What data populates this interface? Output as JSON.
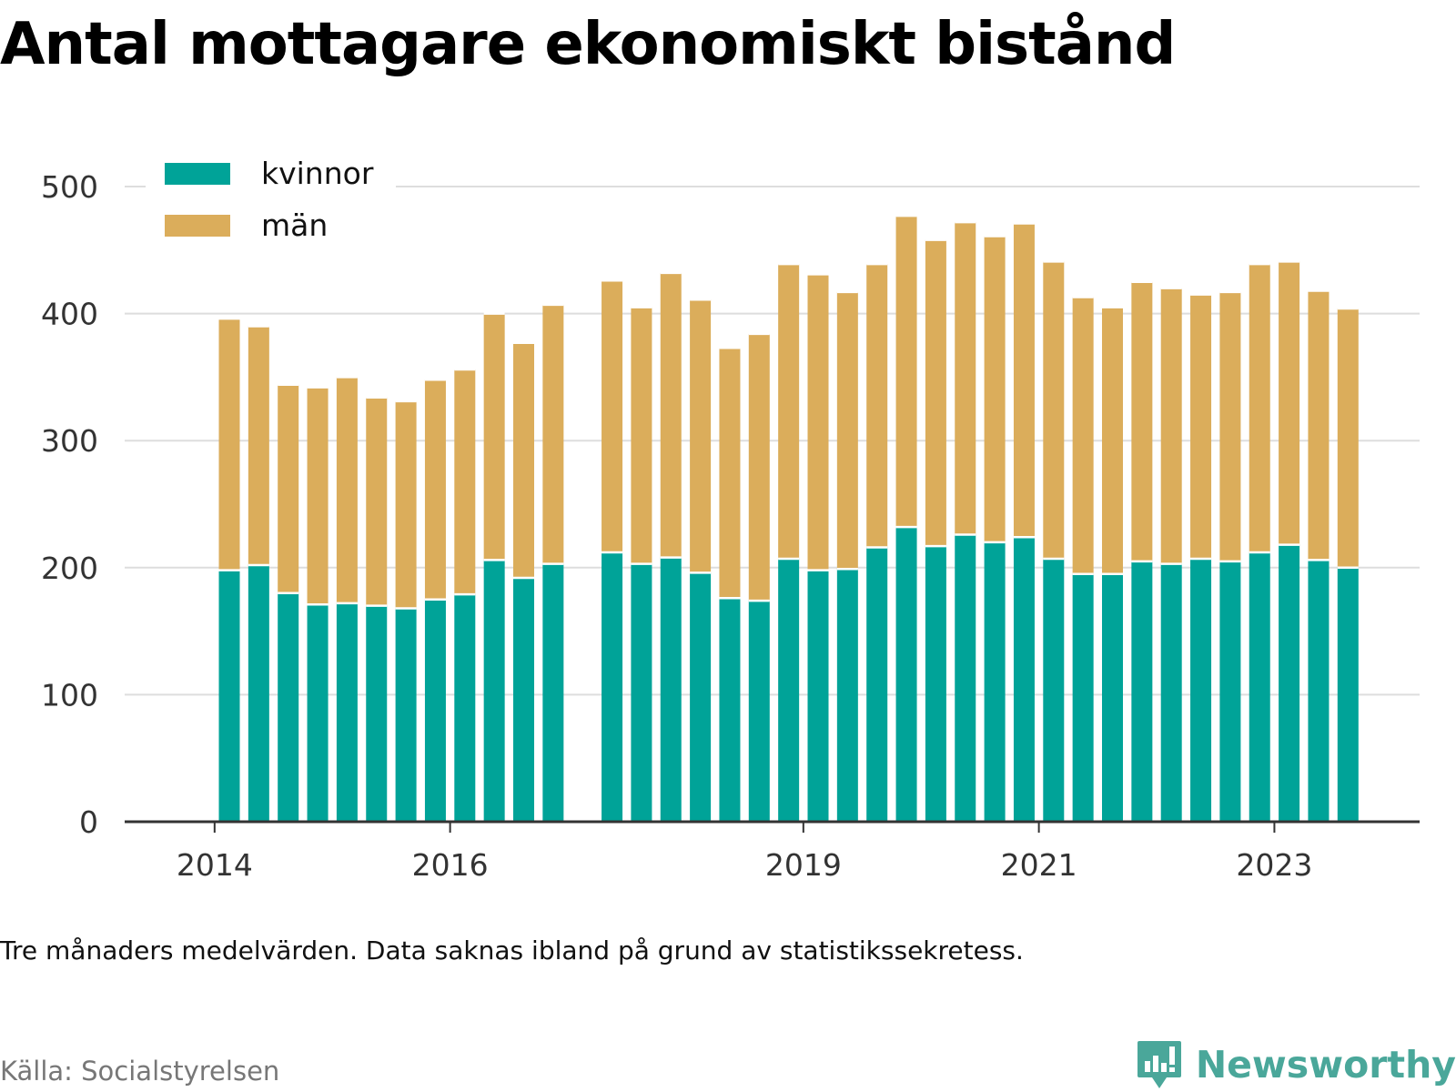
{
  "title": "Antal mottagare ekonomiskt bistånd",
  "footnote": "Tre månaders medelvärden. Data saknas ibland på grund av statistikssekretess.",
  "source": "Källa: Socialstyrelsen",
  "brand": {
    "name": "Newsworthy",
    "icon": "newsworthy-logo-icon",
    "color": "#4aa79a"
  },
  "chart_data": {
    "type": "bar",
    "stacked": true,
    "title": "Antal mottagare ekonomiskt bistånd",
    "xlabel": "",
    "ylabel": "",
    "ylim": [
      0,
      500
    ],
    "yticks": [
      "0",
      "100",
      "200",
      "300",
      "400",
      "500"
    ],
    "xticks": [
      "2014",
      "2016",
      "2019",
      "2021",
      "2023"
    ],
    "grid": true,
    "legend_position": "top-left",
    "colors": {
      "kvinnor": "#00a398",
      "män": "#dbad5b"
    },
    "categories": [
      "2014 Q2",
      "2014 Q3",
      "2014 Q4",
      "2015 Q1",
      "2015 Q2",
      "2015 Q3",
      "2015 Q4",
      "2016 Q1",
      "2016 Q2",
      "2016 Q3",
      "2016 Q4",
      "2017 Q1",
      "2017 Q2",
      "2017 Q3",
      "2017 Q4",
      "2018 Q1",
      "2018 Q2",
      "2018 Q3",
      "2018 Q4",
      "2019 Q1",
      "2019 Q2",
      "2019 Q3",
      "2019 Q4",
      "2020 Q1",
      "2020 Q2",
      "2020 Q3",
      "2020 Q4",
      "2021 Q1",
      "2021 Q2",
      "2021 Q3",
      "2021 Q4",
      "2022 Q1",
      "2022 Q2",
      "2022 Q3",
      "2022 Q4",
      "2023 Q1",
      "2023 Q2",
      "2023 Q3",
      "2023 Q4",
      "2024 Q1"
    ],
    "series": [
      {
        "name": "kvinnor",
        "values": [
          198,
          202,
          180,
          171,
          172,
          170,
          168,
          175,
          179,
          206,
          192,
          203,
          null,
          212,
          203,
          208,
          196,
          176,
          174,
          207,
          198,
          199,
          216,
          232,
          217,
          226,
          220,
          224,
          207,
          195,
          195,
          205,
          203,
          207,
          205,
          212,
          218,
          206,
          200,
          null
        ]
      },
      {
        "name": "män",
        "values": [
          198,
          188,
          164,
          171,
          178,
          164,
          163,
          173,
          177,
          194,
          185,
          204,
          null,
          214,
          202,
          224,
          215,
          197,
          210,
          232,
          233,
          218,
          223,
          245,
          241,
          246,
          241,
          247,
          234,
          218,
          210,
          220,
          217,
          208,
          212,
          227,
          223,
          212,
          204,
          null
        ]
      }
    ]
  }
}
